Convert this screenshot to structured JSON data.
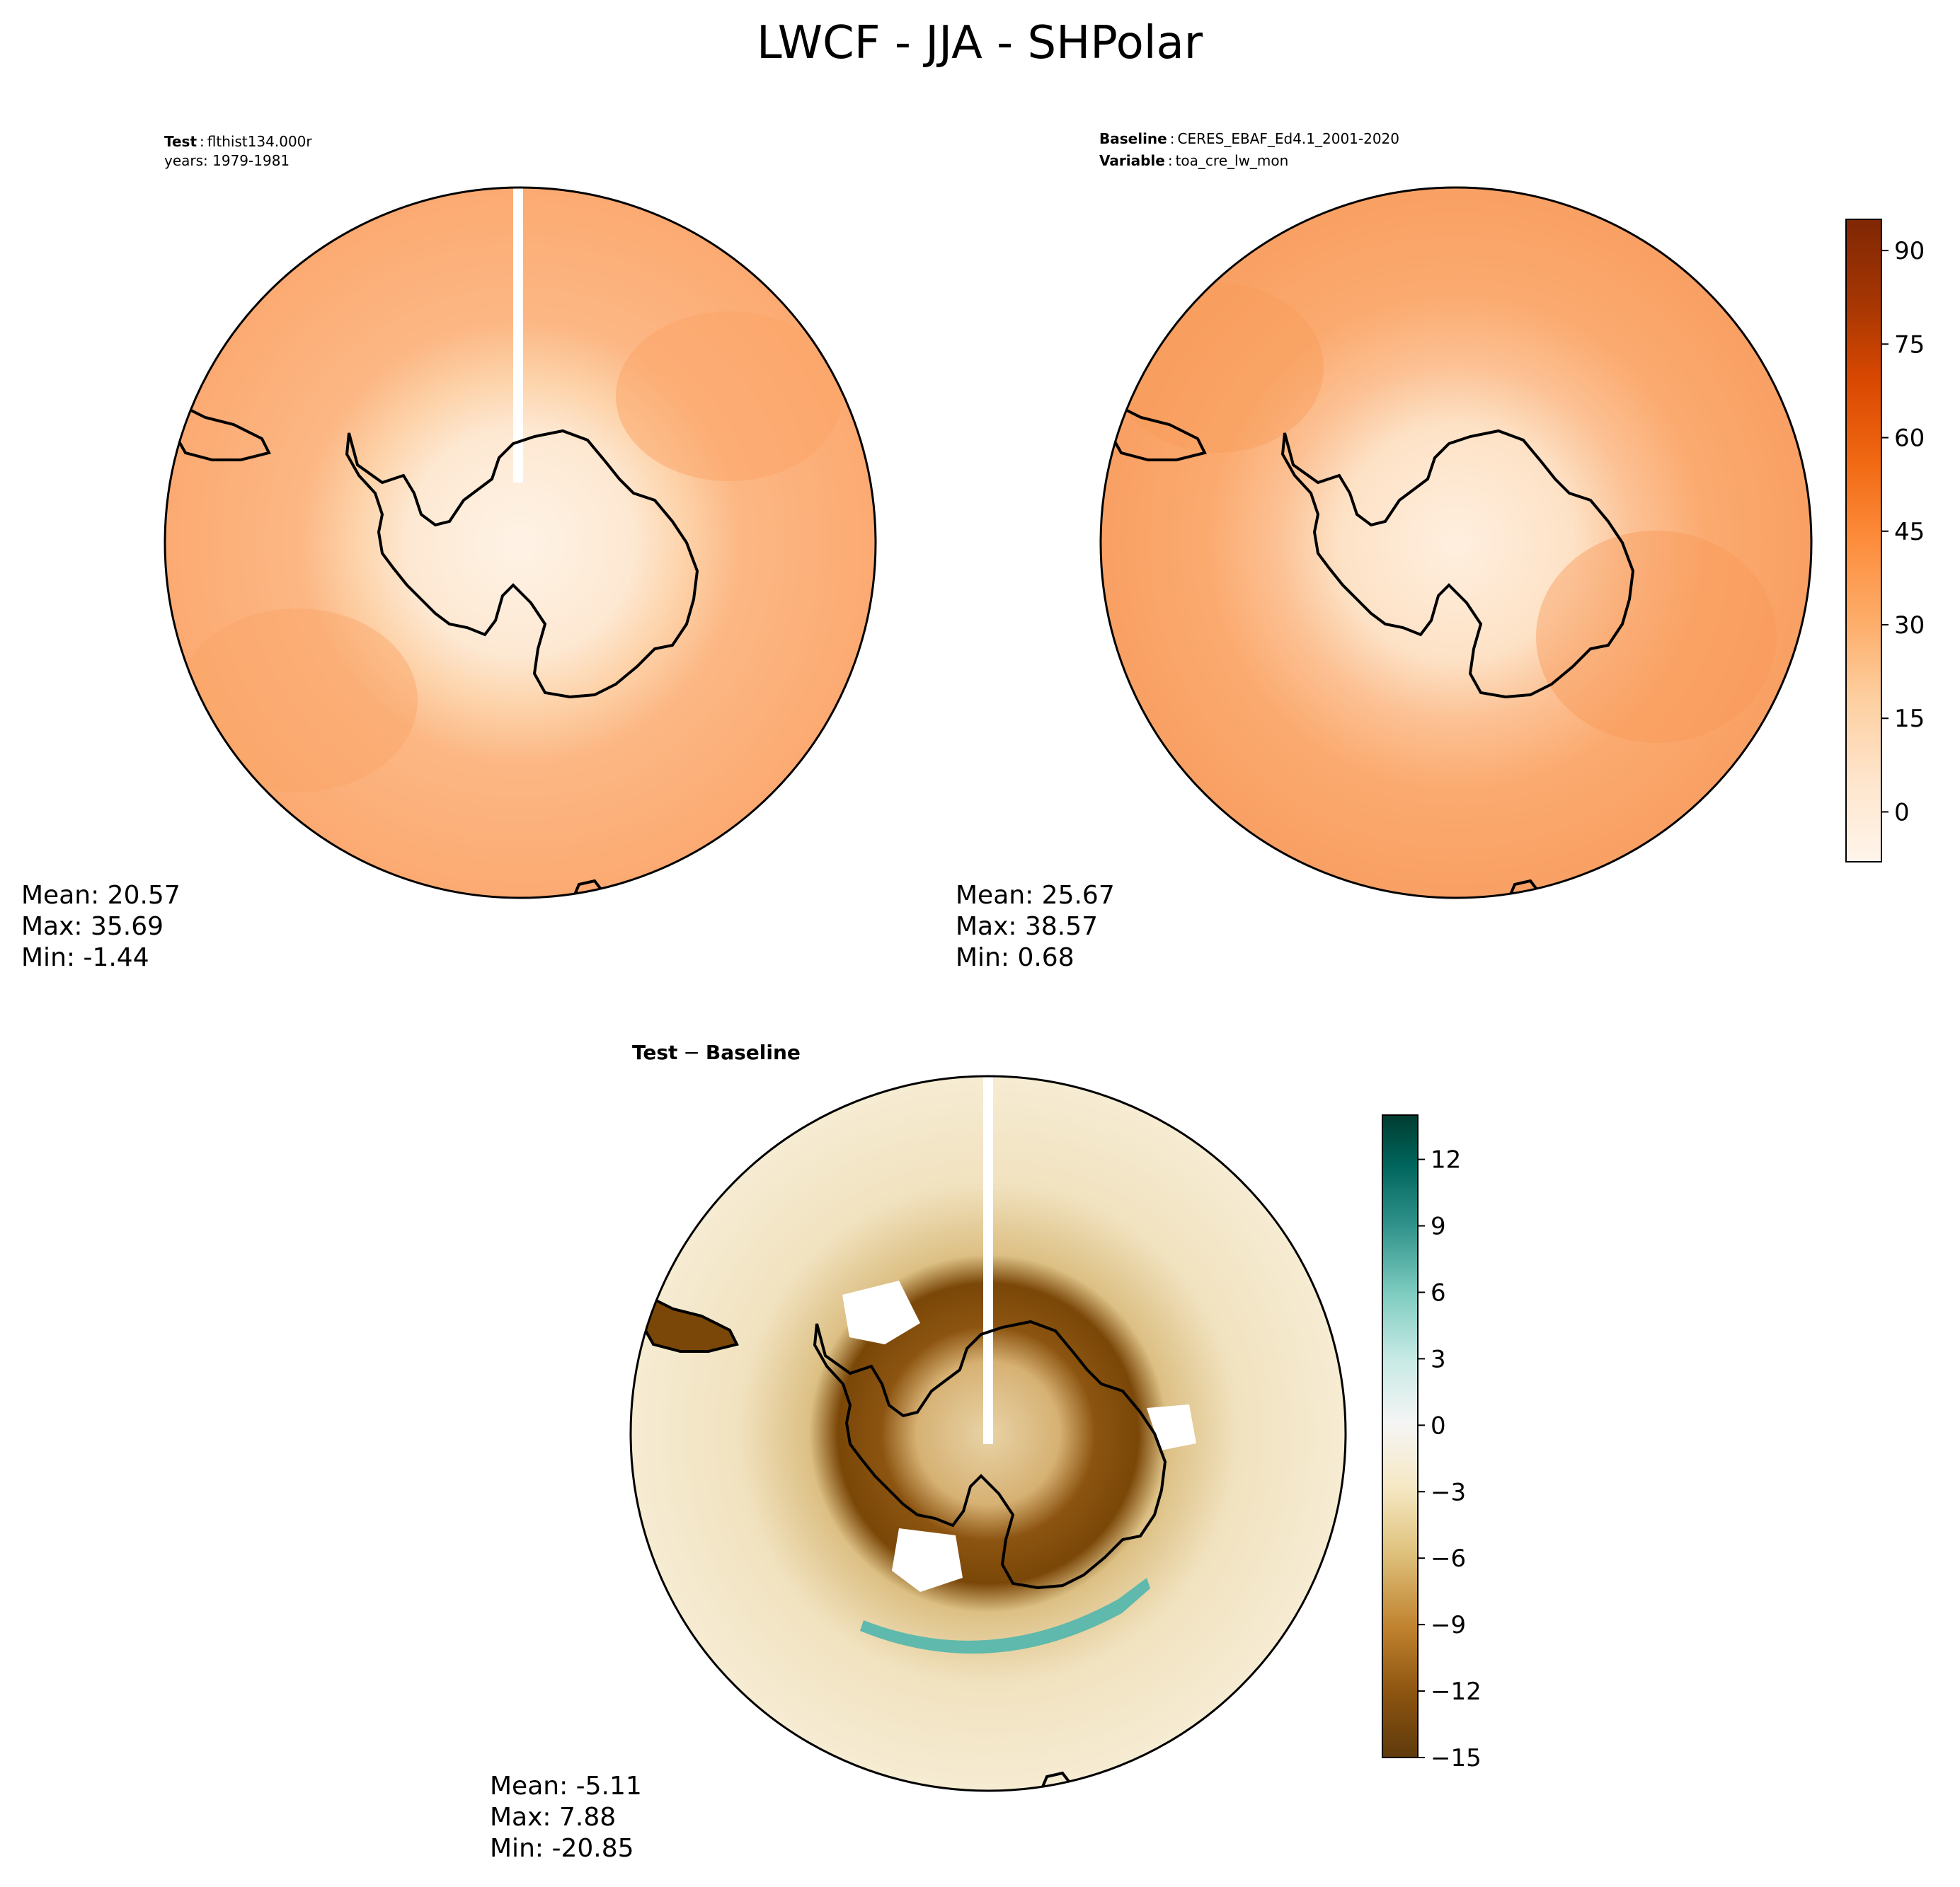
{
  "title": "LWCF - JJA - SHPolar",
  "panels": {
    "test": {
      "label_bold": "Test",
      "label_value": "flthist134.000r",
      "line2": "years: 1979-1981",
      "stats": {
        "mean": "Mean: 20.57",
        "max": "Max: 35.69",
        "min": "Min: -1.44"
      }
    },
    "baseline": {
      "label_bold": "Baseline",
      "label_value": "CERES_EBAF_Ed4.1_2001-2020",
      "line2_bold": "Variable",
      "line2_value": "toa_cre_lw_mon",
      "stats": {
        "mean": "Mean: 25.67",
        "max": "Max: 38.57",
        "min": "Min:  0.68"
      }
    },
    "diff": {
      "label_a": "Test",
      "label_op": "−",
      "label_b": "Baseline",
      "stats": {
        "mean": "Mean: -5.11",
        "max": "Max:  7.88",
        "min": "Min: -20.85"
      }
    }
  },
  "colorbars": {
    "main": {
      "range": [
        -8,
        95
      ],
      "ticks": [
        "90",
        "75",
        "60",
        "45",
        "30",
        "15",
        "0"
      ],
      "tick_values": [
        90,
        75,
        60,
        45,
        30,
        15,
        0
      ],
      "colormap": "Oranges",
      "colors": [
        "#fff5eb",
        "#fee6ce",
        "#fdd0a2",
        "#fdae6b",
        "#fd8d3c",
        "#f16913",
        "#d94801",
        "#a63603",
        "#7f2704"
      ]
    },
    "diff": {
      "range": [
        -15,
        14
      ],
      "ticks": [
        "12",
        "9",
        "6",
        "3",
        "0",
        "−3",
        "−6",
        "−9",
        "−12",
        "−15"
      ],
      "tick_values": [
        12,
        9,
        6,
        3,
        0,
        -3,
        -6,
        -9,
        -12,
        -15
      ],
      "colormap": "BrBG",
      "colors": [
        "#5f3a0c",
        "#8c5410",
        "#bf812d",
        "#dfc27d",
        "#f6e8c3",
        "#f5f5f5",
        "#c7eae5",
        "#80cdc1",
        "#35978f",
        "#01665e",
        "#003c30"
      ]
    }
  },
  "colors": {
    "coast": "#000000",
    "map_rim": "#000000"
  }
}
